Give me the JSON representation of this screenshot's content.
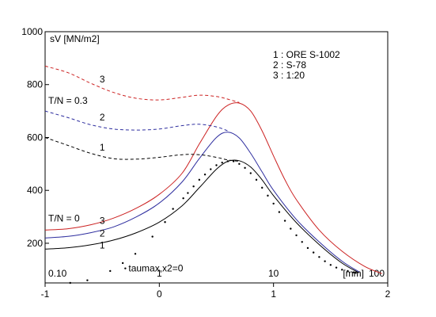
{
  "chart_data": {
    "type": "line",
    "x_axis": {
      "scale": "linear (log10 of mm)",
      "range": [
        -1,
        2
      ],
      "ticks": [
        -1,
        0,
        1,
        2
      ],
      "tick_labels": [
        "-1",
        "0",
        "1",
        "2"
      ],
      "inner_labels": [
        {
          "x": -1,
          "text": "0.10"
        },
        {
          "x": 0,
          "text": "1"
        },
        {
          "x": 1,
          "text": "10"
        },
        {
          "x": 2,
          "text": "100"
        }
      ],
      "unit_label": "[mm]"
    },
    "y_axis": {
      "label": "sV [MN/m2]",
      "range": [
        50,
        1000
      ],
      "ticks": [
        200,
        400,
        600,
        800,
        1000
      ],
      "tick_labels": [
        "200",
        "400",
        "600",
        "800",
        "1000"
      ]
    },
    "legend": {
      "placement": "top-right",
      "items": [
        "1 : ORE S-1002",
        "2 : S-78",
        "3 : 1:20"
      ]
    },
    "group_labels": [
      {
        "text": "T/N = 0.3",
        "x": -1.0,
        "y": 727
      },
      {
        "text": "T/N = 0",
        "x": -1.0,
        "y": 283
      }
    ],
    "curve_labels": [
      {
        "text": "3",
        "x": -0.5,
        "y": 808
      },
      {
        "text": "2",
        "x": -0.5,
        "y": 665
      },
      {
        "text": "1",
        "x": -0.5,
        "y": 550
      },
      {
        "text": "3",
        "x": -0.5,
        "y": 274
      },
      {
        "text": "2",
        "x": -0.5,
        "y": 226
      },
      {
        "text": "1",
        "x": -0.5,
        "y": 180
      }
    ],
    "annotation": {
      "text": "taumax,x2=0",
      "x": -0.27,
      "y": 93
    },
    "series": [
      {
        "id": "1-solid",
        "color": "#000000",
        "dash": false,
        "x": [
          -1.0,
          -0.8,
          -0.6,
          -0.4,
          -0.2,
          0.0,
          0.2,
          0.35,
          0.5,
          0.6,
          0.7,
          0.8,
          0.9,
          1.0,
          1.2,
          1.4,
          1.6,
          1.75
        ],
        "y": [
          178,
          183,
          194,
          212,
          240,
          280,
          342,
          410,
          480,
          510,
          512,
          488,
          440,
          380,
          278,
          195,
          125,
          88
        ]
      },
      {
        "id": "2-solid",
        "color": "#2e2e9f",
        "dash": false,
        "x": [
          -1.0,
          -0.8,
          -0.6,
          -0.4,
          -0.2,
          0.0,
          0.2,
          0.35,
          0.5,
          0.6,
          0.7,
          0.8,
          0.9,
          1.0,
          1.2,
          1.4,
          1.6,
          1.75
        ],
        "y": [
          220,
          226,
          240,
          262,
          300,
          352,
          432,
          520,
          600,
          620,
          598,
          540,
          470,
          400,
          290,
          205,
          132,
          92
        ]
      },
      {
        "id": "3-solid",
        "color": "#cc2222",
        "dash": false,
        "x": [
          -1.0,
          -0.8,
          -0.6,
          -0.4,
          -0.2,
          0.0,
          0.2,
          0.35,
          0.5,
          0.6,
          0.7,
          0.8,
          0.9,
          1.0,
          1.1,
          1.2,
          1.4,
          1.6,
          1.8,
          1.95
        ],
        "y": [
          250,
          255,
          270,
          295,
          333,
          385,
          465,
          575,
          680,
          722,
          730,
          700,
          625,
          530,
          440,
          365,
          250,
          170,
          112,
          85
        ]
      },
      {
        "id": "1-dashed",
        "color": "#000000",
        "dash": true,
        "x": [
          -1.0,
          -0.8,
          -0.6,
          -0.4,
          -0.2,
          0.0,
          0.2,
          0.35,
          0.5,
          0.6,
          0.7
        ],
        "y": [
          600,
          570,
          540,
          520,
          518,
          525,
          535,
          535,
          525,
          515,
          510
        ]
      },
      {
        "id": "2-dashed",
        "color": "#2e2e9f",
        "dash": true,
        "x": [
          -1.0,
          -0.8,
          -0.6,
          -0.4,
          -0.2,
          0.0,
          0.2,
          0.35,
          0.5,
          0.6
        ],
        "y": [
          700,
          675,
          648,
          632,
          628,
          632,
          645,
          650,
          640,
          625
        ]
      },
      {
        "id": "3-dashed",
        "color": "#cc2222",
        "dash": true,
        "x": [
          -1.0,
          -0.8,
          -0.6,
          -0.4,
          -0.2,
          0.0,
          0.2,
          0.35,
          0.5,
          0.6,
          0.7
        ],
        "y": [
          870,
          845,
          805,
          770,
          748,
          742,
          752,
          760,
          755,
          745,
          732
        ]
      }
    ],
    "scatter": {
      "color": "#000000",
      "x": [
        -0.78,
        -0.63,
        -0.43,
        -0.32,
        -0.21,
        -0.06,
        0.05,
        0.12,
        0.21,
        0.25,
        0.3,
        0.35,
        0.4,
        0.45,
        0.5,
        0.55,
        0.6,
        0.65,
        0.7,
        0.75,
        0.8,
        0.85,
        0.9,
        0.95,
        1.0,
        1.05,
        1.1,
        1.15,
        1.2,
        1.25,
        1.3,
        1.35,
        1.4,
        1.45,
        1.5,
        1.55,
        1.6,
        1.65,
        1.7,
        1.72
      ],
      "y": [
        50,
        60,
        95,
        125,
        160,
        225,
        280,
        330,
        370,
        390,
        415,
        440,
        460,
        480,
        495,
        505,
        510,
        510,
        500,
        485,
        465,
        440,
        410,
        380,
        350,
        318,
        285,
        255,
        230,
        205,
        182,
        165,
        148,
        132,
        118,
        108,
        100,
        95,
        90,
        88
      ]
    }
  }
}
